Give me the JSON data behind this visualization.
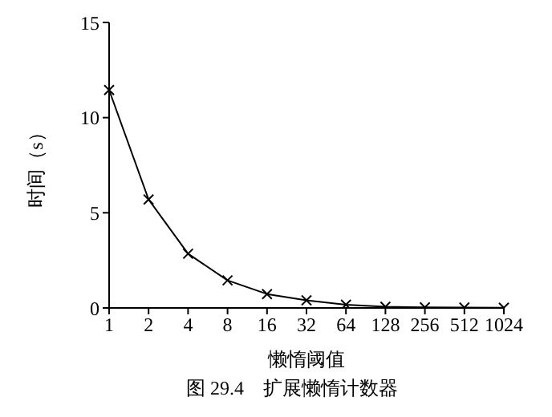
{
  "chart_data": {
    "type": "line",
    "xlabel": "懒惰阈值",
    "ylabel": "时间（s）",
    "annotations": [
      "图 29.4　扩展懒惰计数器"
    ],
    "categories": [
      "1",
      "2",
      "4",
      "8",
      "16",
      "32",
      "64",
      "128",
      "256",
      "512",
      "1024"
    ],
    "series": [
      {
        "color": "#000000",
        "values": [
          11.45,
          5.7,
          2.85,
          1.45,
          0.73,
          0.4,
          0.17,
          0.06,
          0.03,
          0.02,
          0.01
        ]
      }
    ],
    "ylim": [
      0,
      15
    ],
    "yticks": [
      0,
      5,
      10,
      15
    ],
    "grid": false,
    "legend": false,
    "marker": "cross",
    "line_style": "solid"
  }
}
